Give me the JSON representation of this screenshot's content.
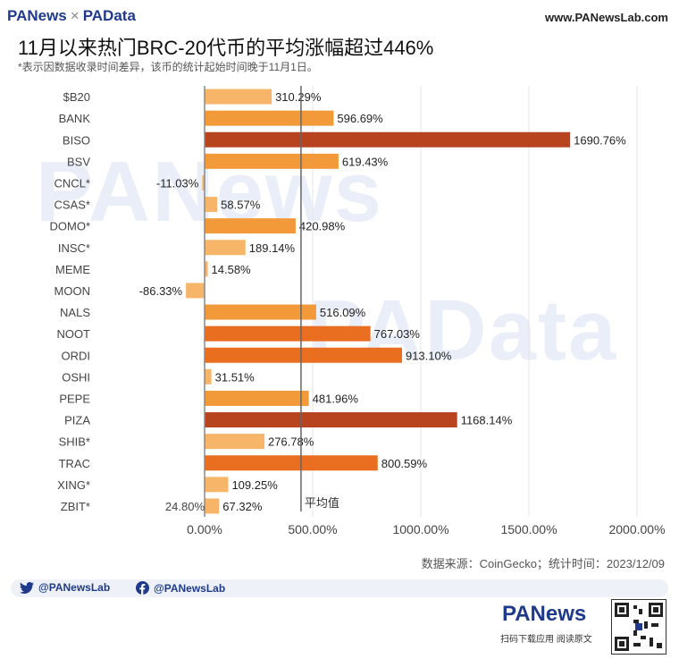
{
  "header": {
    "brand_left": "PANews",
    "brand_sep": "×",
    "brand_right": "PAData",
    "site": "www.PANewsLab.com"
  },
  "title": "11月以来热门BRC-20代币的平均涨幅超过446%",
  "subtitle": "*表示因数据收录时间差异，该币的统计起始时间晚于11月1日。",
  "source": "数据来源：CoinGecko；统计时间：2023/12/09",
  "social": {
    "twitter": "@PANewsLab",
    "facebook": "@PANewsLab"
  },
  "footer": {
    "logo": "PANews",
    "scan_text": "扫码下载应用  阅读原文"
  },
  "watermarks": [
    "PANews",
    "PAData"
  ],
  "chart_data": {
    "type": "bar",
    "orientation": "horizontal",
    "categories": [
      "$B20",
      "BANK",
      "BISO",
      "BSV",
      "CNCL*",
      "CSAS*",
      "DOMO*",
      "INSC*",
      "MEME",
      "MOON",
      "NALS",
      "NOOT",
      "ORDI",
      "OSHI",
      "PEPE",
      "PIZA",
      "SHIB*",
      "TRAC",
      "XING*",
      "ZBIT*"
    ],
    "values": [
      310.29,
      596.69,
      1690.76,
      619.43,
      -11.03,
      58.57,
      420.98,
      189.14,
      14.58,
      -86.33,
      516.09,
      767.03,
      913.1,
      31.51,
      481.96,
      1168.14,
      276.78,
      800.59,
      109.25,
      67.32
    ],
    "value_labels": [
      "310.29%",
      "596.69%",
      "1690.76%",
      "619.43%",
      "-11.03%",
      "58.57%",
      "420.98%",
      "189.14%",
      "14.58%",
      "-86.33%",
      "516.09%",
      "767.03%",
      "913.10%",
      "31.51%",
      "481.96%",
      "1168.14%",
      "276.78%",
      "800.59%",
      "109.25%",
      "67.32%"
    ],
    "xlim": [
      -100,
      2000
    ],
    "xticks": [
      0,
      500,
      1000,
      1500,
      2000
    ],
    "xtick_labels": [
      "0.00%",
      "500.00%",
      "1000.00%",
      "1500.00%",
      "2000.00%"
    ],
    "average": {
      "value": 446,
      "label": "平均值"
    },
    "extra_annotation": {
      "text": "24.80%",
      "row": 19
    },
    "colors": {
      "light": "#f7b56a",
      "mid": "#f29a3a",
      "dark": "#e96e1f",
      "max": "#b8431f",
      "grid": "#e4e4e4",
      "avg_line": "#666666",
      "zero_line": "#888888"
    },
    "grid": true,
    "legend": "none"
  }
}
